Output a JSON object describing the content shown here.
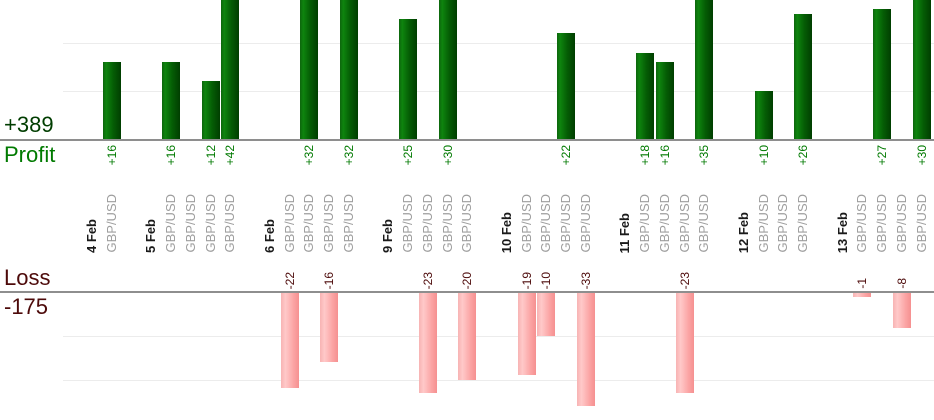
{
  "chart_data": {
    "type": "bar",
    "title": "",
    "layout_hint": "dual-section trade P/L bar chart; profit bars grow up from upper baseline, loss bars hang from lower baseline; columns grouped by day with rotated labels; tall bars clipped by crop",
    "sections": {
      "profit": {
        "label": "Profit",
        "total": "+389",
        "value_color": "#007a00",
        "total_color": "#003d00"
      },
      "loss": {
        "label": "Loss",
        "total": "-175",
        "value_color": "#4d0a0a",
        "total_color": "#4d0a0a"
      }
    },
    "axis": {
      "profit_gridlines": [
        10,
        20
      ],
      "loss_gridlines": [
        -10,
        -20
      ],
      "profit_visible_max": 29,
      "loss_visible_min": -26,
      "grid_on": true
    },
    "days": [
      {
        "date": "4 Feb",
        "trades": [
          {
            "instrument": "GBP/USD",
            "pnl": 16
          }
        ]
      },
      {
        "date": "5 Feb",
        "trades": [
          {
            "instrument": "GBP/USD",
            "pnl": 16
          },
          {
            "instrument": "GBP/USD",
            "pnl": 0
          },
          {
            "instrument": "GBP/USD",
            "pnl": 12
          },
          {
            "instrument": "GBP/USD",
            "pnl": 42
          }
        ]
      },
      {
        "date": "6 Feb",
        "trades": [
          {
            "instrument": "GBP/USD",
            "pnl": -22
          },
          {
            "instrument": "GBP/USD",
            "pnl": 32
          },
          {
            "instrument": "GBP/USD",
            "pnl": -16
          },
          {
            "instrument": "GBP/USD",
            "pnl": 32
          }
        ]
      },
      {
        "date": "9 Feb",
        "trades": [
          {
            "instrument": "GBP/USD",
            "pnl": 25
          },
          {
            "instrument": "GBP/USD",
            "pnl": -23
          },
          {
            "instrument": "GBP/USD",
            "pnl": 30
          },
          {
            "instrument": "GBP/USD",
            "pnl": -20
          }
        ]
      },
      {
        "date": "10 Feb",
        "trades": [
          {
            "instrument": "GBP/USD",
            "pnl": -19
          },
          {
            "instrument": "GBP/USD",
            "pnl": -10
          },
          {
            "instrument": "GBP/USD",
            "pnl": 22
          },
          {
            "instrument": "GBP/USD",
            "pnl": -33
          }
        ]
      },
      {
        "date": "11 Feb",
        "trades": [
          {
            "instrument": "GBP/USD",
            "pnl": 18
          },
          {
            "instrument": "GBP/USD",
            "pnl": 16
          },
          {
            "instrument": "GBP/USD",
            "pnl": -23
          },
          {
            "instrument": "GBP/USD",
            "pnl": 35
          }
        ]
      },
      {
        "date": "12 Feb",
        "trades": [
          {
            "instrument": "GBP/USD",
            "pnl": 10
          },
          {
            "instrument": "GBP/USD",
            "pnl": 0
          },
          {
            "instrument": "GBP/USD",
            "pnl": 26
          }
        ]
      },
      {
        "date": "13 Feb",
        "trades": [
          {
            "instrument": "GBP/USD",
            "pnl": -1
          },
          {
            "instrument": "GBP/USD",
            "pnl": 27
          },
          {
            "instrument": "GBP/USD",
            "pnl": -8
          },
          {
            "instrument": "GBP/USD",
            "pnl": 30
          }
        ]
      }
    ],
    "colors": {
      "profit_bar_gradient": [
        "#0d650d",
        "#0e840e",
        "#055f05",
        "#003e00"
      ],
      "loss_bar_gradient": [
        "#f7b3b3",
        "#ffc9c9",
        "#fba4a4",
        "#f59090"
      ],
      "gridline": "#ececec",
      "baseline": "#8e8e8e",
      "date_label": "#1a1a1a",
      "instrument_label": "#9e9e9e"
    }
  }
}
